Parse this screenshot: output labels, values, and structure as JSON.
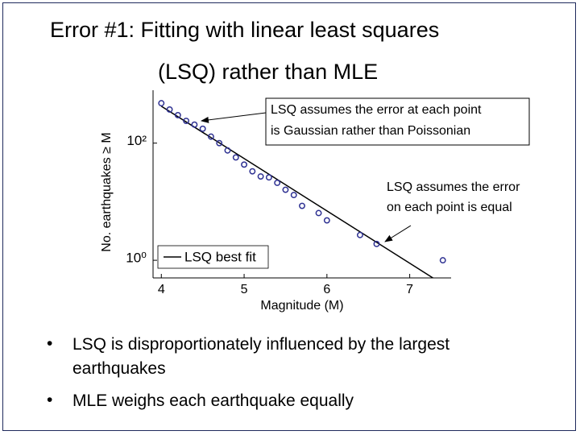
{
  "slide": {
    "title": [
      "Error #1: Fitting with linear least squares",
      "(LSQ) rather than MLE"
    ],
    "bullet": "•",
    "bullets": [
      "LSQ is disproportionately influenced by the largest earthquakes",
      "MLE weighs each earthquake equally"
    ]
  },
  "chart_data": {
    "type": "scatter",
    "xlabel": "Magnitude (M)",
    "ylabel": "No. earthquakes ≥ M",
    "xlim": [
      3.9,
      7.5
    ],
    "xticks": [
      4,
      5,
      6,
      7
    ],
    "ylim": [
      0.5,
      800
    ],
    "yscale": "log",
    "yticks": [
      {
        "value": 1,
        "label": "10⁰"
      },
      {
        "value": 100,
        "label": "10²"
      }
    ],
    "points": {
      "color": "#2e3192",
      "x": [
        4.0,
        4.1,
        4.2,
        4.3,
        4.4,
        4.5,
        4.6,
        4.7,
        4.8,
        4.9,
        5.0,
        5.1,
        5.2,
        5.3,
        5.4,
        5.5,
        5.6,
        5.7,
        5.9,
        6.0,
        6.4,
        6.6,
        7.4
      ],
      "values": [
        480,
        375,
        300,
        240,
        207,
        176,
        129,
        100,
        75,
        57,
        43,
        33,
        27,
        26,
        21,
        16,
        13,
        8.5,
        6.4,
        4.8,
        2.7,
        1.9,
        1
      ]
    },
    "fit": {
      "name": "LSQ best fit",
      "color": "#000000",
      "x": [
        4.0,
        7.3
      ],
      "values": [
        427,
        0.48
      ]
    },
    "legend": "lower left",
    "annotations": [
      {
        "text": [
          "LSQ assumes the error at each point",
          "is Gaussian rather than Poissonian"
        ]
      },
      {
        "text": [
          "LSQ assumes the error",
          "on each point is equal"
        ]
      }
    ]
  }
}
